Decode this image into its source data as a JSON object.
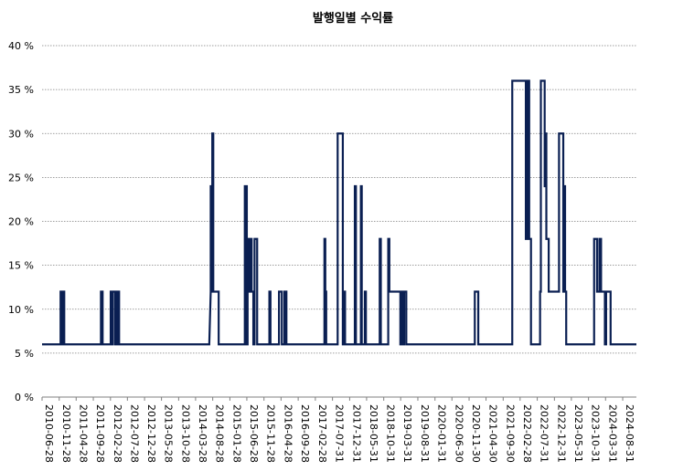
{
  "chart_data": {
    "type": "line",
    "title": "발행일별 수익률",
    "xlabel": "",
    "ylabel": "",
    "ylim": [
      0,
      40
    ],
    "yticks": [
      "0 %",
      "5 %",
      "10 %",
      "15 %",
      "20 %",
      "25 %",
      "30 %",
      "35 %",
      "40 %"
    ],
    "ytick_values": [
      0,
      5,
      10,
      15,
      20,
      25,
      30,
      35,
      40
    ],
    "xticks": [
      "2010-06-28",
      "2010-11-28",
      "2011-04-28",
      "2011-09-28",
      "2012-02-28",
      "2012-07-28",
      "2012-12-28",
      "2013-05-28",
      "2013-10-28",
      "2014-03-28",
      "2014-08-28",
      "2015-01-28",
      "2015-06-28",
      "2015-11-28",
      "2016-04-28",
      "2016-09-28",
      "2017-02-28",
      "2017-07-31",
      "2017-12-31",
      "2018-05-31",
      "2018-10-31",
      "2019-03-31",
      "2019-08-31",
      "2020-01-31",
      "2020-06-30",
      "2020-11-30",
      "2021-04-30",
      "2021-09-30",
      "2022-02-28",
      "2022-07-31",
      "2022-12-31",
      "2023-05-31",
      "2023-10-31",
      "2024-03-31",
      "2024-08-31"
    ],
    "xlim": [
      "2010-06-28",
      "2024-12-31"
    ],
    "grid": true,
    "legend": "none",
    "series": [
      {
        "color": "#0a1f52",
        "points": [
          [
            "2010-06-28",
            6
          ],
          [
            "2010-12-10",
            6
          ],
          [
            "2010-12-10",
            12
          ],
          [
            "2010-12-25",
            12
          ],
          [
            "2010-12-25",
            6
          ],
          [
            "2011-01-05",
            6
          ],
          [
            "2011-01-05",
            12
          ],
          [
            "2011-01-12",
            12
          ],
          [
            "2011-01-12",
            6
          ],
          [
            "2011-12-05",
            6
          ],
          [
            "2011-12-05",
            12
          ],
          [
            "2011-12-20",
            12
          ],
          [
            "2011-12-20",
            6
          ],
          [
            "2012-03-01",
            6
          ],
          [
            "2012-03-01",
            12
          ],
          [
            "2012-03-10",
            12
          ],
          [
            "2012-03-10",
            6
          ],
          [
            "2012-03-20",
            6
          ],
          [
            "2012-03-20",
            12
          ],
          [
            "2012-04-10",
            12
          ],
          [
            "2012-04-10",
            6
          ],
          [
            "2012-04-18",
            6
          ],
          [
            "2012-04-18",
            12
          ],
          [
            "2012-04-28",
            12
          ],
          [
            "2012-04-28",
            6
          ],
          [
            "2012-05-05",
            6
          ],
          [
            "2012-05-05",
            12
          ],
          [
            "2012-05-15",
            12
          ],
          [
            "2012-05-15",
            6
          ],
          [
            "2014-07-28",
            6
          ],
          [
            "2014-08-10",
            12
          ],
          [
            "2014-08-10",
            24
          ],
          [
            "2014-08-16",
            24
          ],
          [
            "2014-08-16",
            12
          ],
          [
            "2014-08-24",
            12
          ],
          [
            "2014-08-24",
            30
          ],
          [
            "2014-09-02",
            30
          ],
          [
            "2014-09-02",
            12
          ],
          [
            "2014-10-20",
            12
          ],
          [
            "2014-10-20",
            6
          ],
          [
            "2015-06-10",
            6
          ],
          [
            "2015-06-10",
            24
          ],
          [
            "2015-06-28",
            24
          ],
          [
            "2015-06-28",
            6
          ],
          [
            "2015-07-05",
            6
          ],
          [
            "2015-07-05",
            18
          ],
          [
            "2015-07-15",
            18
          ],
          [
            "2015-07-15",
            12
          ],
          [
            "2015-07-25",
            12
          ],
          [
            "2015-07-25",
            18
          ],
          [
            "2015-08-10",
            18
          ],
          [
            "2015-08-10",
            12
          ],
          [
            "2015-08-25",
            12
          ],
          [
            "2015-08-25",
            6
          ],
          [
            "2015-09-05",
            6
          ],
          [
            "2015-09-05",
            18
          ],
          [
            "2015-09-28",
            18
          ],
          [
            "2015-09-28",
            6
          ],
          [
            "2016-01-15",
            6
          ],
          [
            "2016-01-15",
            12
          ],
          [
            "2016-01-25",
            12
          ],
          [
            "2016-01-25",
            6
          ],
          [
            "2016-04-10",
            6
          ],
          [
            "2016-04-10",
            12
          ],
          [
            "2016-05-05",
            12
          ],
          [
            "2016-05-05",
            6
          ],
          [
            "2016-05-28",
            6
          ],
          [
            "2016-05-28",
            12
          ],
          [
            "2016-06-15",
            12
          ],
          [
            "2016-06-15",
            6
          ],
          [
            "2017-05-20",
            6
          ],
          [
            "2017-05-20",
            18
          ],
          [
            "2017-05-28",
            18
          ],
          [
            "2017-05-28",
            12
          ],
          [
            "2017-06-05",
            12
          ],
          [
            "2017-06-05",
            6
          ],
          [
            "2017-09-15",
            6
          ],
          [
            "2017-09-15",
            30
          ],
          [
            "2017-10-31",
            30
          ],
          [
            "2017-10-31",
            6
          ],
          [
            "2017-11-10",
            6
          ],
          [
            "2017-11-10",
            12
          ],
          [
            "2017-11-20",
            12
          ],
          [
            "2017-11-20",
            6
          ],
          [
            "2018-02-15",
            6
          ],
          [
            "2018-02-15",
            24
          ],
          [
            "2018-02-25",
            24
          ],
          [
            "2018-02-25",
            6
          ],
          [
            "2018-04-10",
            6
          ],
          [
            "2018-04-10",
            24
          ],
          [
            "2018-04-18",
            24
          ],
          [
            "2018-04-18",
            6
          ],
          [
            "2018-05-15",
            6
          ],
          [
            "2018-05-15",
            12
          ],
          [
            "2018-05-25",
            12
          ],
          [
            "2018-05-25",
            6
          ],
          [
            "2018-09-25",
            6
          ],
          [
            "2018-09-25",
            18
          ],
          [
            "2018-10-05",
            18
          ],
          [
            "2018-10-05",
            6
          ],
          [
            "2018-12-10",
            6
          ],
          [
            "2018-12-10",
            18
          ],
          [
            "2018-12-20",
            18
          ],
          [
            "2018-12-20",
            12
          ],
          [
            "2019-03-28",
            12
          ],
          [
            "2019-03-28",
            6
          ],
          [
            "2019-04-05",
            6
          ],
          [
            "2019-04-05",
            12
          ],
          [
            "2019-04-20",
            12
          ],
          [
            "2019-04-20",
            6
          ],
          [
            "2019-05-01",
            6
          ],
          [
            "2019-05-01",
            12
          ],
          [
            "2019-05-20",
            12
          ],
          [
            "2019-05-20",
            6
          ],
          [
            "2021-01-20",
            6
          ],
          [
            "2021-01-20",
            12
          ],
          [
            "2021-02-20",
            12
          ],
          [
            "2021-02-20",
            6
          ],
          [
            "2021-12-20",
            6
          ],
          [
            "2021-12-20",
            36
          ],
          [
            "2022-04-20",
            36
          ],
          [
            "2022-04-20",
            18
          ],
          [
            "2022-05-05",
            18
          ],
          [
            "2022-05-05",
            36
          ],
          [
            "2022-05-20",
            36
          ],
          [
            "2022-05-20",
            18
          ],
          [
            "2022-06-05",
            18
          ],
          [
            "2022-06-05",
            6
          ],
          [
            "2022-08-25",
            6
          ],
          [
            "2022-08-25",
            12
          ],
          [
            "2022-09-01",
            12
          ],
          [
            "2022-09-01",
            36
          ],
          [
            "2022-10-05",
            36
          ],
          [
            "2022-10-05",
            24
          ],
          [
            "2022-10-12",
            24
          ],
          [
            "2022-10-12",
            30
          ],
          [
            "2022-10-20",
            30
          ],
          [
            "2022-10-20",
            18
          ],
          [
            "2022-11-10",
            18
          ],
          [
            "2022-11-10",
            12
          ],
          [
            "2023-02-10",
            12
          ],
          [
            "2023-02-10",
            30
          ],
          [
            "2023-03-20",
            30
          ],
          [
            "2023-03-20",
            12
          ],
          [
            "2023-03-28",
            12
          ],
          [
            "2023-03-28",
            24
          ],
          [
            "2023-04-05",
            24
          ],
          [
            "2023-04-05",
            12
          ],
          [
            "2023-04-15",
            12
          ],
          [
            "2023-04-15",
            6
          ],
          [
            "2023-12-20",
            6
          ],
          [
            "2023-12-20",
            18
          ],
          [
            "2024-01-15",
            18
          ],
          [
            "2024-01-15",
            12
          ],
          [
            "2024-02-05",
            12
          ],
          [
            "2024-02-05",
            18
          ],
          [
            "2024-02-20",
            18
          ],
          [
            "2024-02-20",
            12
          ],
          [
            "2024-03-25",
            12
          ],
          [
            "2024-03-25",
            6
          ],
          [
            "2024-04-05",
            6
          ],
          [
            "2024-04-05",
            12
          ],
          [
            "2024-05-15",
            12
          ],
          [
            "2024-05-15",
            6
          ],
          [
            "2024-12-31",
            6
          ]
        ]
      }
    ]
  }
}
